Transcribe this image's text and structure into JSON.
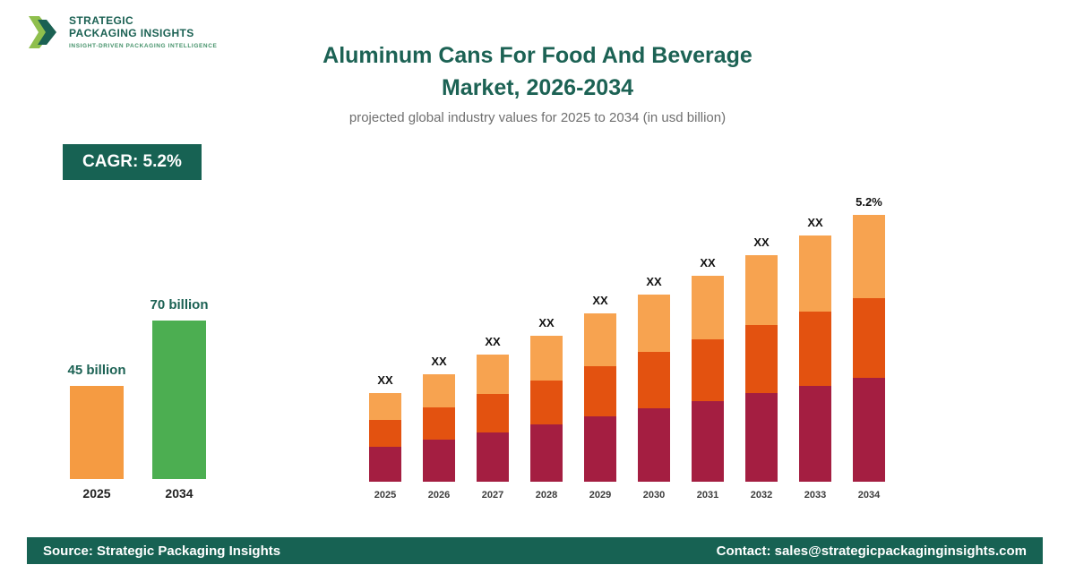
{
  "logo": {
    "line1": "STRATEGIC",
    "line2": "PACKAGING INSIGHTS",
    "tagline": "INSIGHT-DRIVEN PACKAGING INTELLIGENCE"
  },
  "header": {
    "title_line1": "Aluminum Cans For Food And Beverage",
    "title_line2": "Market, 2026-2034",
    "subtitle": "projected global industry values for 2025 to 2034 (in usd billion)"
  },
  "cagr_badge": "CAGR: 5.2%",
  "colors": {
    "brand_teal": "#176253",
    "title_teal": "#1c6254",
    "mini_orange": "#f59b42",
    "mini_green": "#4cae51",
    "segment_bottom": "#a41e41",
    "segment_middle": "#e35210",
    "segment_top": "#f7a350"
  },
  "mini_chart": {
    "bars": [
      {
        "label": "45 billion",
        "year": "2025",
        "color": "#f59b42",
        "height": 104
      },
      {
        "label": "70 billion",
        "year": "2034",
        "color": "#4cae51",
        "height": 177
      }
    ]
  },
  "chart_data": {
    "type": "stacked-bar",
    "title": "Aluminum Cans For Food And Beverage Market, 2026-2034",
    "subtitle": "projected global industry values for 2025 to 2034 (in usd billion)",
    "categories": [
      "2025",
      "2026",
      "2027",
      "2028",
      "2029",
      "2030",
      "2031",
      "2032",
      "2033",
      "2034"
    ],
    "series": [
      {
        "name": "bottom",
        "color": "#a41e41",
        "values": [
          39,
          47,
          55,
          64,
          73,
          82,
          90,
          99,
          107,
          116
        ]
      },
      {
        "name": "middle",
        "color": "#e35210",
        "values": [
          30,
          36,
          43,
          49,
          56,
          63,
          69,
          76,
          83,
          89
        ]
      },
      {
        "name": "top",
        "color": "#f7a350",
        "values": [
          30,
          37,
          44,
          50,
          59,
          64,
          71,
          78,
          85,
          93
        ]
      }
    ],
    "totals": [
      99,
      120,
      142,
      163,
      188,
      209,
      230,
      253,
      275,
      298
    ],
    "bar_labels": [
      "XX",
      "XX",
      "XX",
      "XX",
      "XX",
      "XX",
      "XX",
      "XX",
      "XX",
      "5.2%"
    ],
    "value_note": "values shown as XX placeholders; heights in relative units",
    "legend": "none",
    "grid": "off"
  },
  "footer": {
    "source": "Source: Strategic Packaging Insights",
    "contact": "Contact: sales@strategicpackaginginsights.com"
  }
}
